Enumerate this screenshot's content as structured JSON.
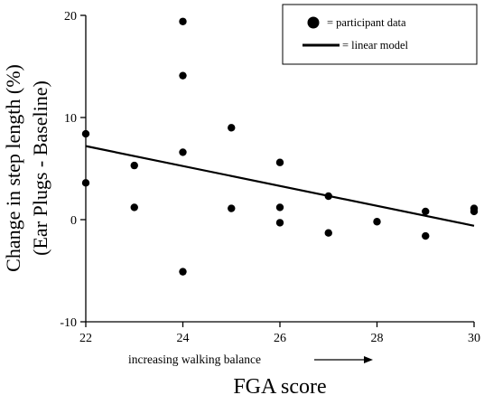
{
  "chart_data": {
    "type": "scatter",
    "title": "",
    "xlabel": "FGA score",
    "ylabel_line1": "Change in step length (%)",
    "ylabel_line2": "(Ear Plugs - Baseline)",
    "x_annotation": "increasing walking balance",
    "xlim": [
      22,
      30
    ],
    "ylim": [
      -10,
      20
    ],
    "xticks": [
      22,
      24,
      26,
      28,
      30
    ],
    "yticks": [
      -10,
      0,
      10,
      20
    ],
    "grid": false,
    "legend_position": "top-right",
    "series": [
      {
        "name": "= participant data",
        "kind": "points",
        "color": "#000000",
        "points": [
          {
            "x": 22,
            "y": 8.4
          },
          {
            "x": 22,
            "y": 3.6
          },
          {
            "x": 23,
            "y": 5.3
          },
          {
            "x": 23,
            "y": 1.2
          },
          {
            "x": 24,
            "y": 19.4
          },
          {
            "x": 24,
            "y": 14.1
          },
          {
            "x": 24,
            "y": 6.6
          },
          {
            "x": 24,
            "y": -5.1
          },
          {
            "x": 25,
            "y": 9.0
          },
          {
            "x": 25,
            "y": 1.1
          },
          {
            "x": 26,
            "y": 5.6
          },
          {
            "x": 26,
            "y": 1.2
          },
          {
            "x": 26,
            "y": -0.3
          },
          {
            "x": 27,
            "y": 2.3
          },
          {
            "x": 27,
            "y": -1.3
          },
          {
            "x": 28,
            "y": -0.2
          },
          {
            "x": 29,
            "y": 0.8
          },
          {
            "x": 29,
            "y": -1.6
          },
          {
            "x": 30,
            "y": 1.1
          },
          {
            "x": 30,
            "y": 0.8
          }
        ]
      },
      {
        "name": "= linear model",
        "kind": "line",
        "color": "#000000",
        "points": [
          {
            "x": 22,
            "y": 7.2
          },
          {
            "x": 30,
            "y": -0.6
          }
        ]
      }
    ]
  }
}
